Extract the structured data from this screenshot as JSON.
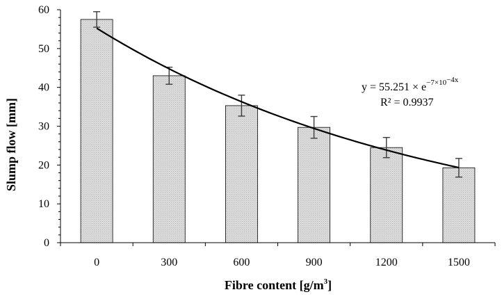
{
  "chart_data": {
    "type": "bar",
    "xlabel_main": "Fibre content [g/m",
    "xlabel_sup": "3",
    "xlabel_end": "]",
    "ylabel": "Slump flow [mm]",
    "categories": [
      "0",
      "300",
      "600",
      "900",
      "1200",
      "1500"
    ],
    "values": [
      57.5,
      43.0,
      35.3,
      29.7,
      24.5,
      19.3
    ],
    "errors": [
      2.0,
      2.2,
      2.7,
      2.8,
      2.6,
      2.4
    ],
    "ylim": [
      0,
      60
    ],
    "yticks": [
      "0",
      "10",
      "20",
      "30",
      "40",
      "50",
      "60"
    ],
    "bar_color": "#d4d4d4",
    "trendline": {
      "type": "exponential",
      "coefficient": 55.251,
      "rate": -0.0007,
      "equation_main": "y = 55.251 × e",
      "equation_exp": "−7×10",
      "equation_exp_pow": "−4x",
      "r_squared": "R² = 0.9937"
    },
    "grid": false,
    "legend": "none"
  }
}
